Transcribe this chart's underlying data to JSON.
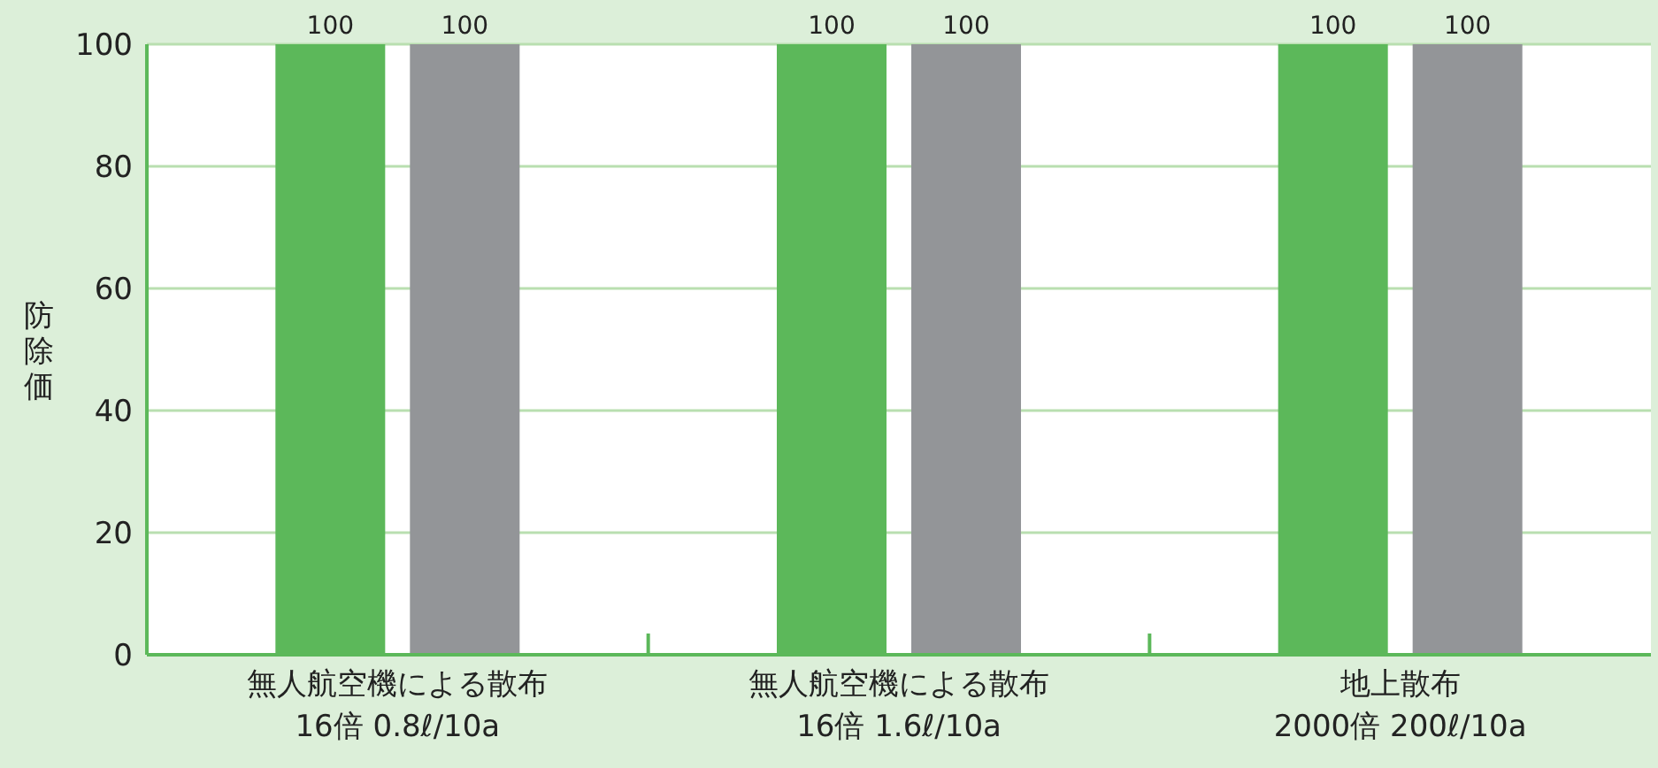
{
  "chart_data": {
    "type": "bar",
    "ylabel": "防除価",
    "categories": [
      "無人航空機による散布\n16倍 0.8ℓ/10a",
      "無人航空機による散布\n16倍 1.6ℓ/10a",
      "地上散布\n2000倍 200ℓ/10a"
    ],
    "series": [
      {
        "color": "#5cb85a",
        "values": [
          100,
          100,
          100
        ]
      },
      {
        "color": "#939598",
        "values": [
          100,
          100,
          100
        ]
      }
    ],
    "ylim": [
      0,
      100
    ],
    "yticks": [
      0,
      20,
      40,
      60,
      80,
      100
    ],
    "grid": "y",
    "data_labels": true
  }
}
